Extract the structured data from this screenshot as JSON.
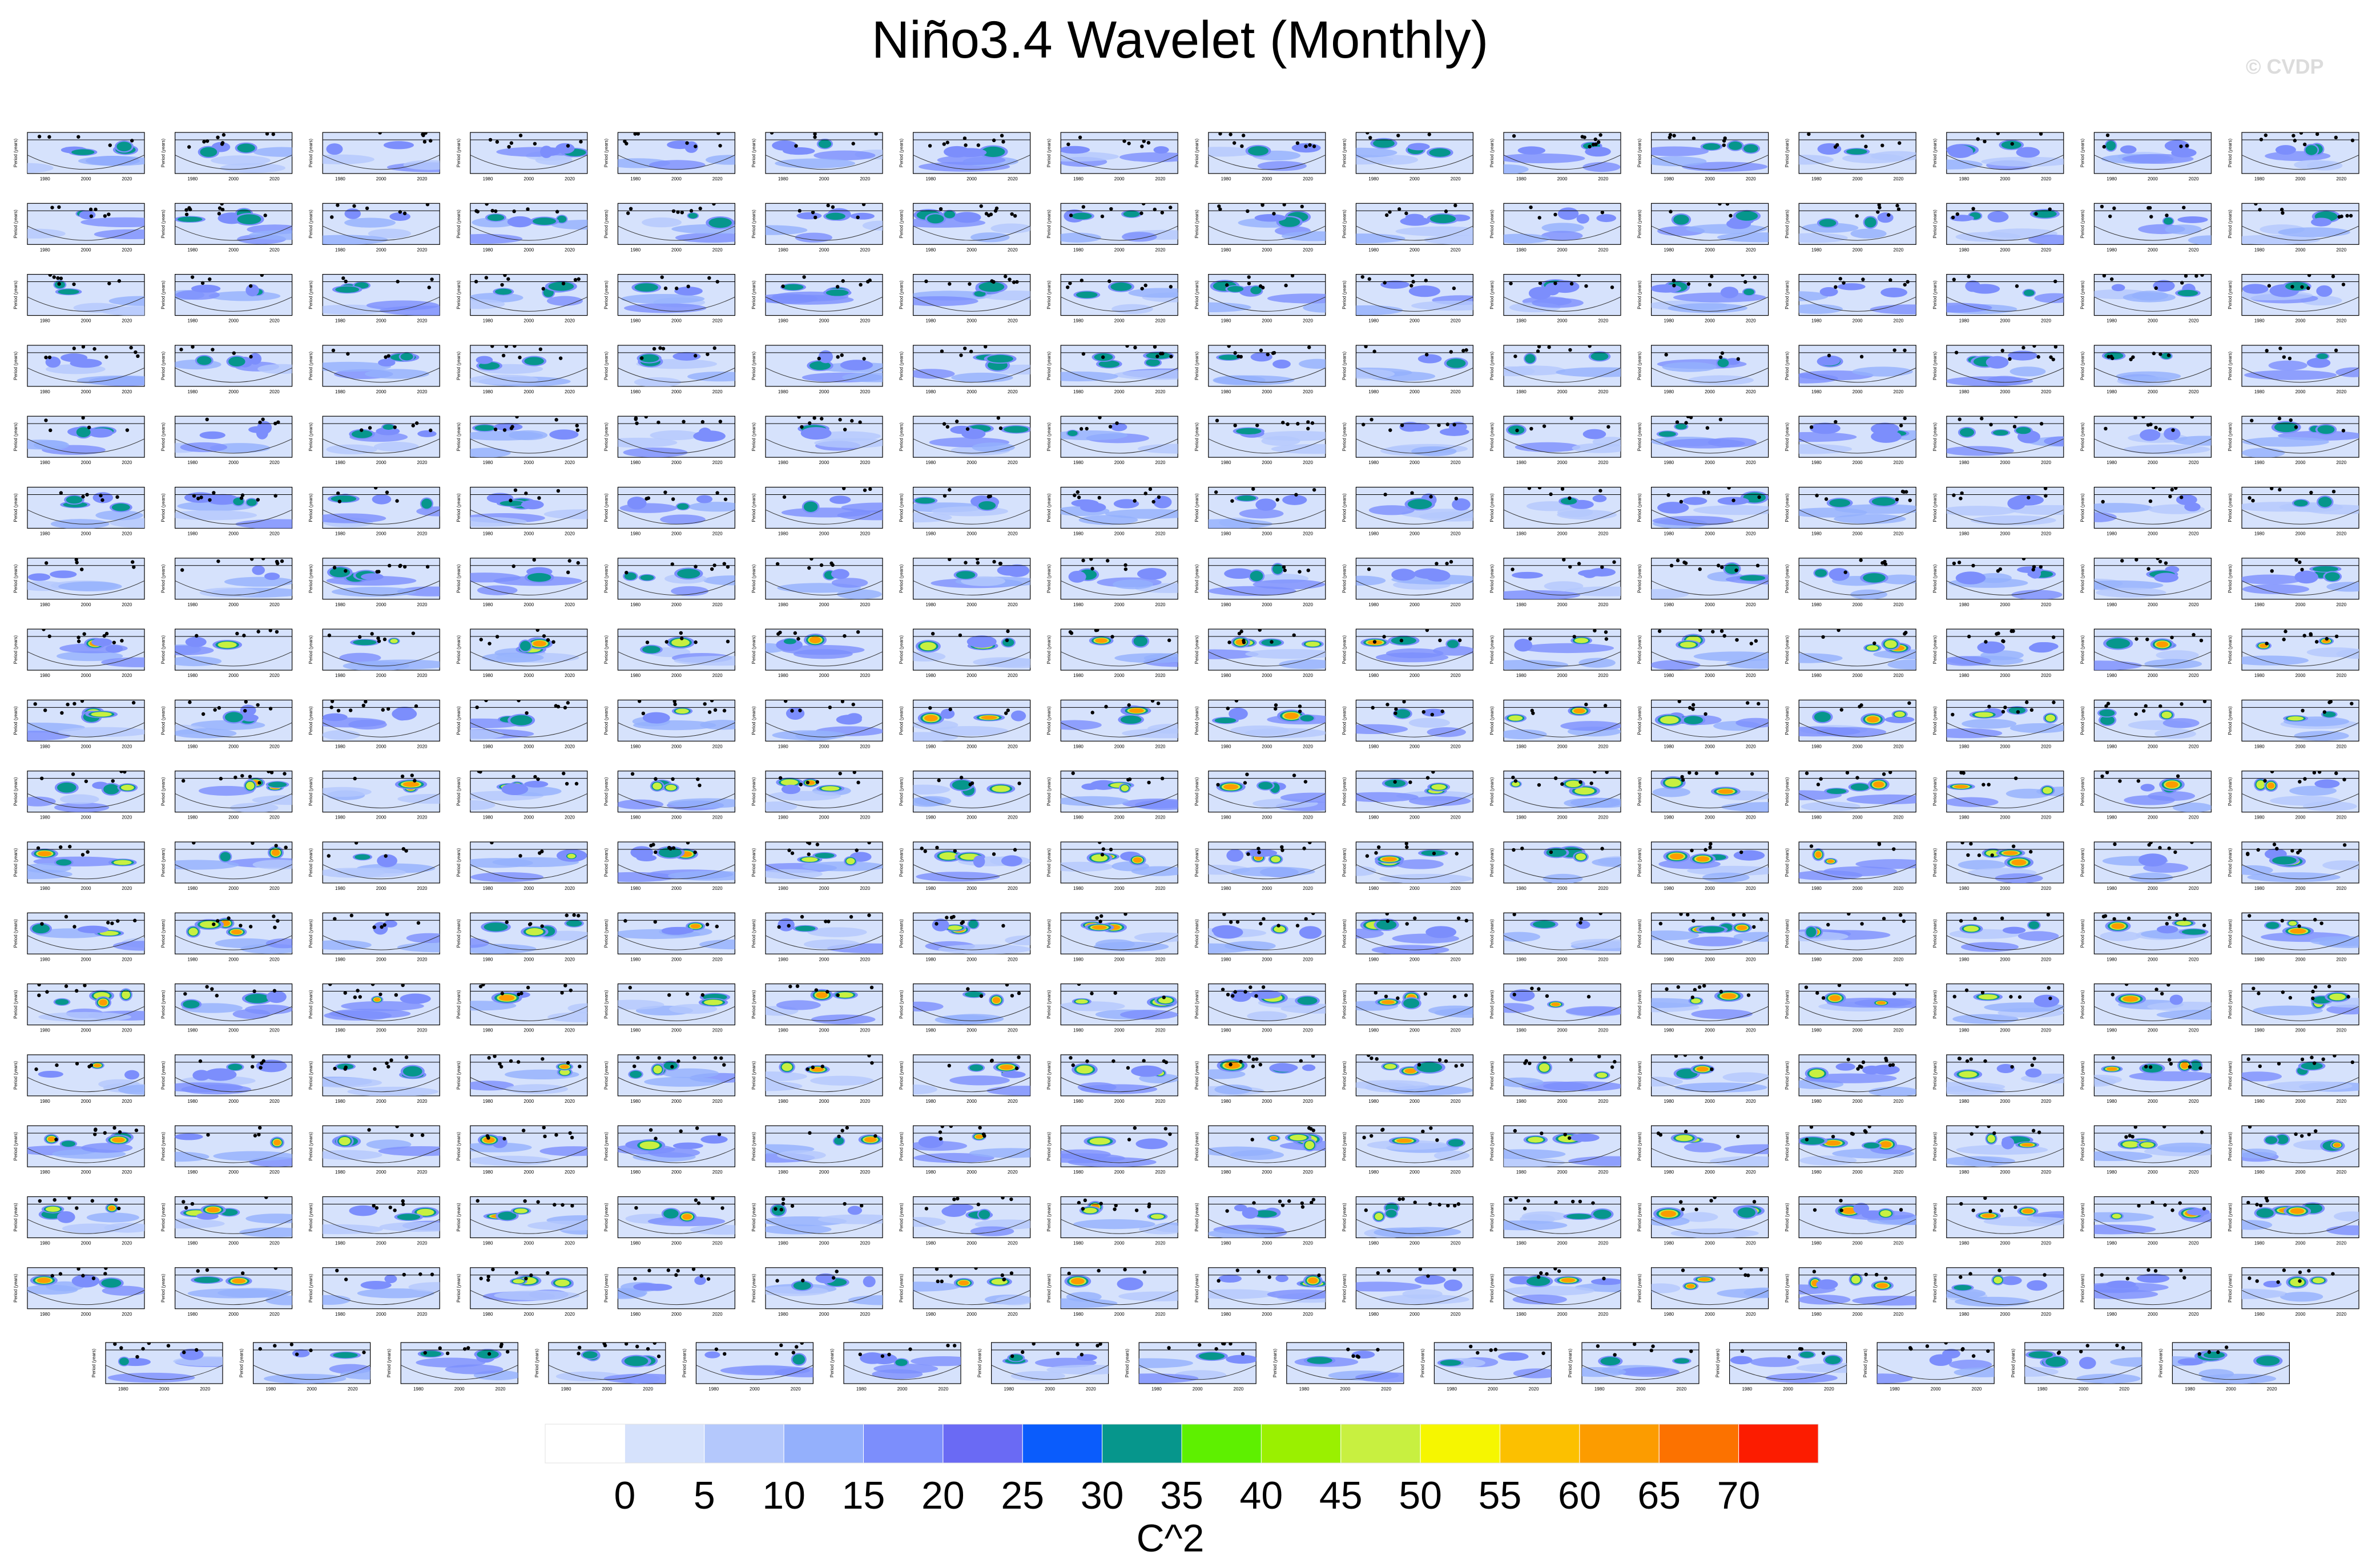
{
  "title": "Niño3.4 Wavelet (Monthly)",
  "watermark": "© CVDP",
  "chart_data": {
    "type": "heatmap",
    "description_text": "",
    "panel_grid": {
      "rows": 17,
      "cols": 16,
      "extra_row_panels": 15
    },
    "panel_axis": {
      "ylabel": "Period (years)",
      "xticks": [
        "1980",
        "2000",
        "2020"
      ]
    },
    "colorbar": {
      "label": "C^2",
      "tick_labels": [
        "0",
        "5",
        "10",
        "15",
        "20",
        "25",
        "30",
        "35",
        "40",
        "45",
        "50",
        "55",
        "60",
        "65",
        "70"
      ],
      "colors": [
        "#ffffff",
        "#d6e2fc",
        "#b4c8fc",
        "#94b0fc",
        "#7c8efc",
        "#6a6af4",
        "#0a5cfc",
        "#06968c",
        "#5ef000",
        "#9af000",
        "#c8f040",
        "#f6f600",
        "#fcc000",
        "#fc9c00",
        "#fc7200",
        "#fc1c00"
      ]
    }
  }
}
